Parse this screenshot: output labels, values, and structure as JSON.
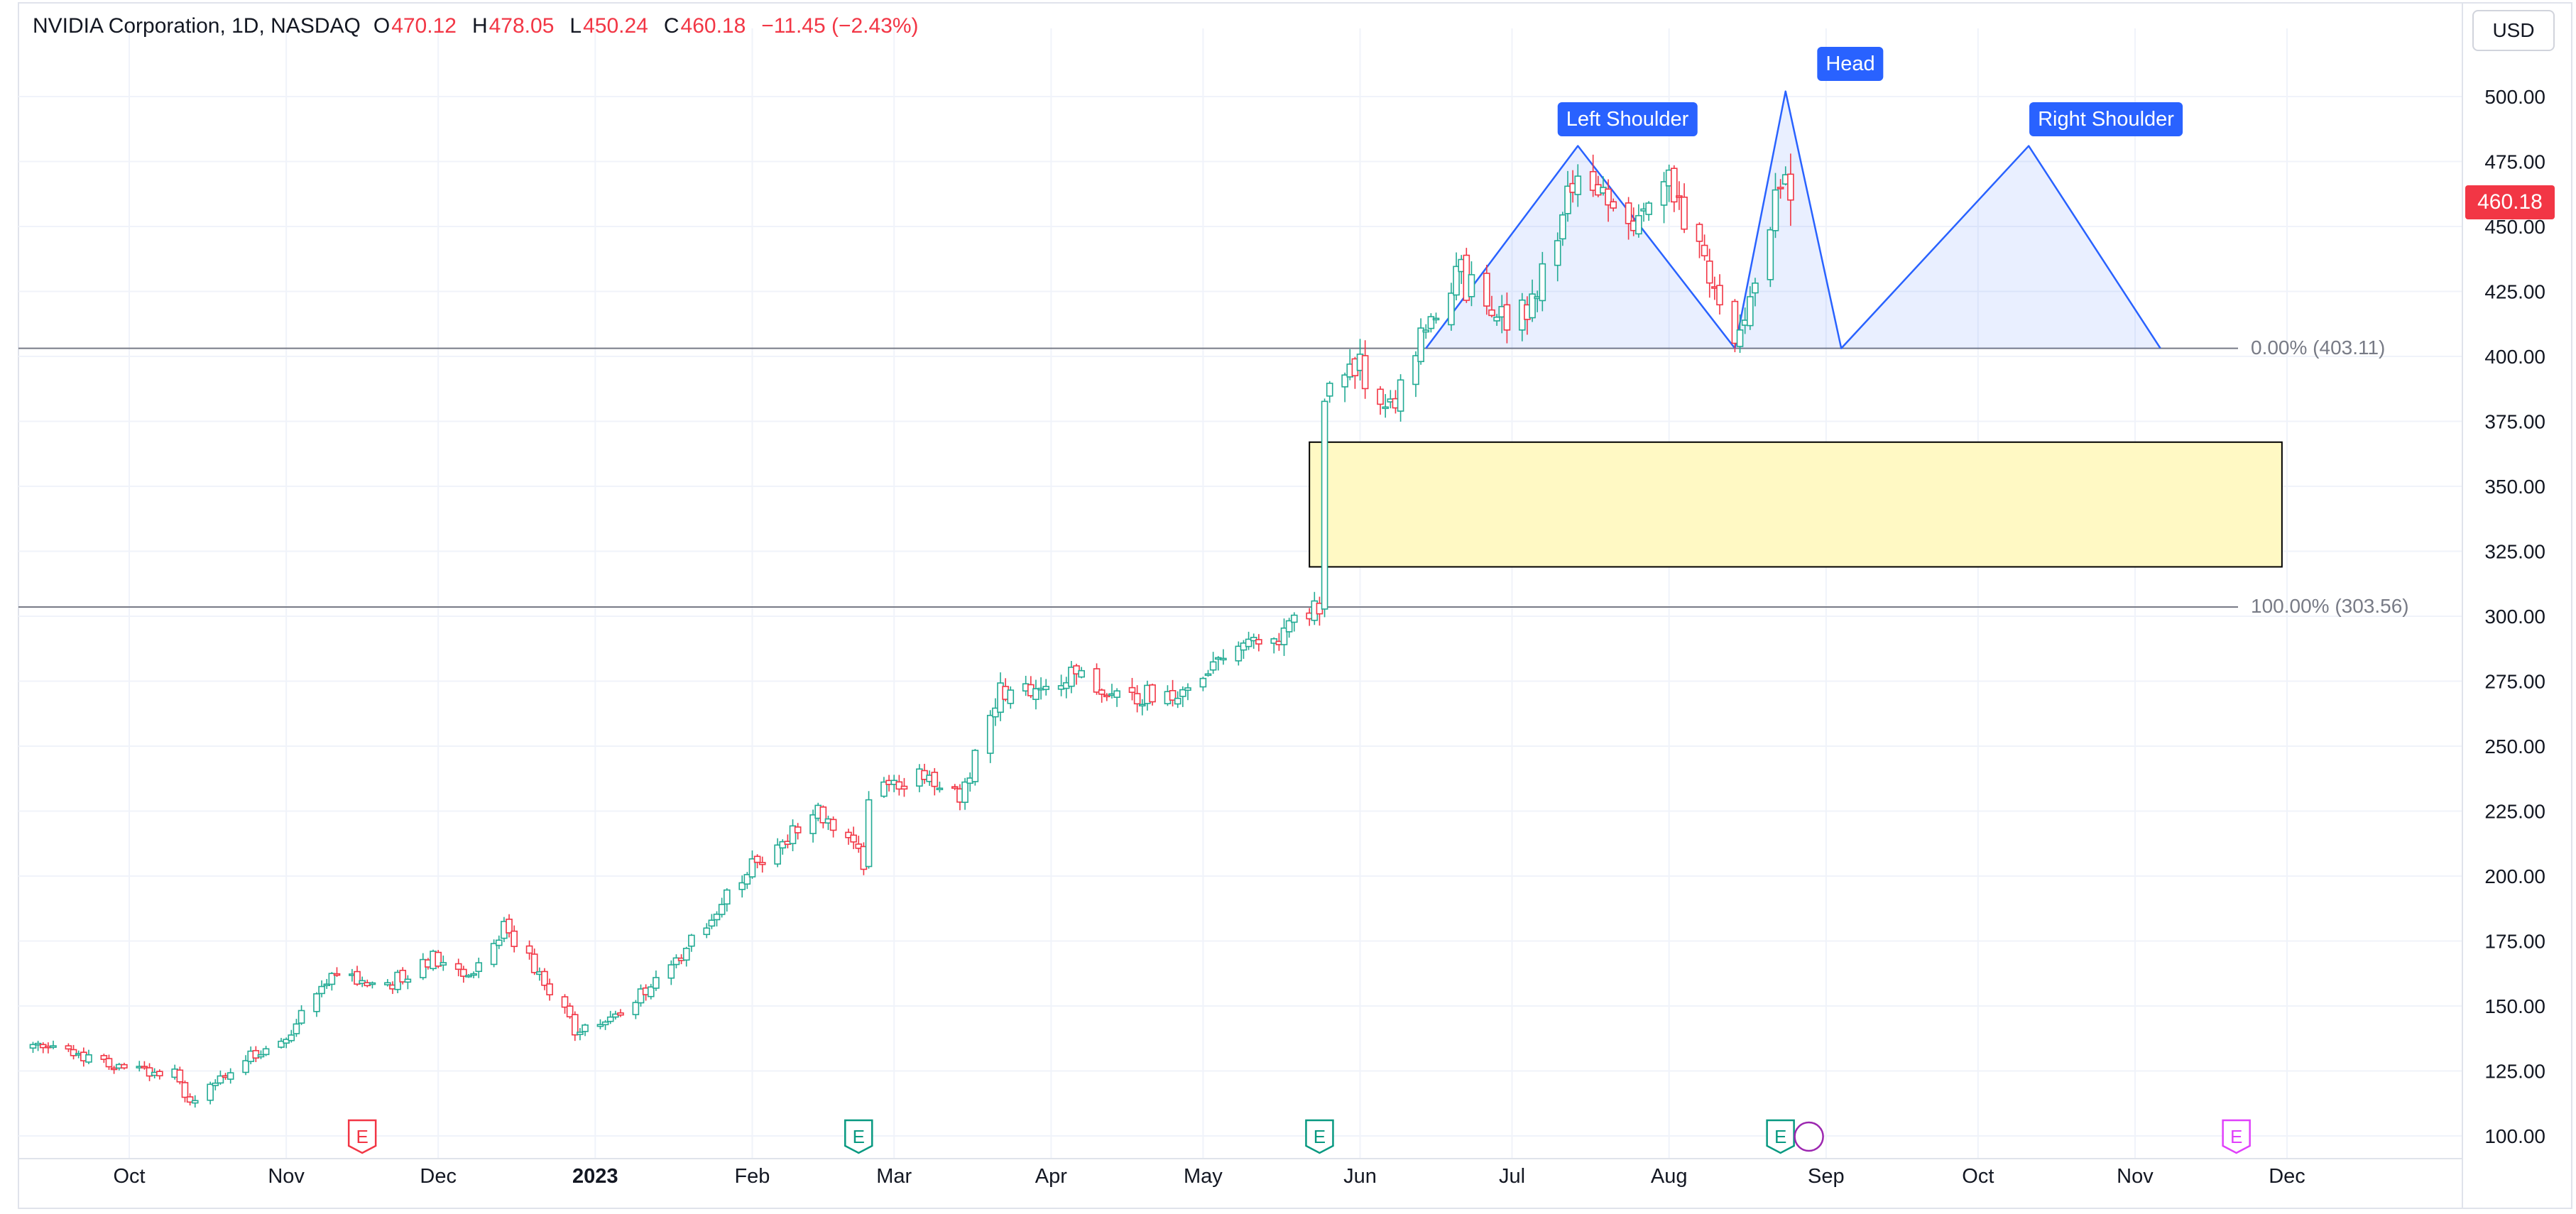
{
  "header": {
    "symbol": "NVIDIA Corporation, 1D, NASDAQ",
    "open_label": "O",
    "open": "470.12",
    "high_label": "H",
    "high": "478.05",
    "low_label": "L",
    "low": "450.24",
    "close_label": "C",
    "close": "460.18",
    "change": "−11.45 (−2.43%)"
  },
  "currency_button": "USD",
  "last_price_badge": "460.18",
  "colors": {
    "up": "#22ab94",
    "down": "#f23645",
    "pattern": "#2962ff",
    "zone_fill": "#fff9c4",
    "grid": "#f0f3fa"
  },
  "pattern_labels": {
    "left_shoulder": "Left Shoulder",
    "head": "Head",
    "right_shoulder": "Right Shoulder"
  },
  "fib_levels": [
    {
      "label": "0.00% (403.11)",
      "price": 403.11
    },
    {
      "label": "100.00% (303.56)",
      "price": 303.56
    }
  ],
  "chart_data": {
    "type": "candlestick",
    "y_ticks": [
      "100.00",
      "125.00",
      "150.00",
      "175.00",
      "200.00",
      "225.00",
      "250.00",
      "275.00",
      "300.00",
      "325.00",
      "350.00",
      "375.00",
      "400.00",
      "425.00",
      "450.00",
      "475.00",
      "500.00"
    ],
    "ylim": [
      100,
      500
    ],
    "x_ticks": [
      "Oct",
      "Nov",
      "Dec",
      "2023",
      "Feb",
      "Mar",
      "Apr",
      "May",
      "Jun",
      "Jul",
      "Aug",
      "Sep",
      "Oct",
      "Nov",
      "Dec"
    ],
    "x_tick_dates": [
      "2022-10-01",
      "2022-11-01",
      "2022-12-01",
      "2023-01-01",
      "2023-02-01",
      "2023-03-01",
      "2023-04-01",
      "2023-05-01",
      "2023-06-01",
      "2023-07-01",
      "2023-08-01",
      "2023-09-01",
      "2023-10-01",
      "2023-11-01",
      "2023-12-01"
    ],
    "price_path": [
      [
        "2022-09-12",
        136
      ],
      [
        "2022-09-22",
        131
      ],
      [
        "2022-09-30",
        125
      ],
      [
        "2022-10-10",
        125
      ],
      [
        "2022-10-13",
        112
      ],
      [
        "2022-10-25",
        131
      ],
      [
        "2022-11-01",
        138
      ],
      [
        "2022-11-10",
        162
      ],
      [
        "2022-11-21",
        158
      ],
      [
        "2022-11-30",
        169
      ],
      [
        "2022-12-07",
        162
      ],
      [
        "2022-12-14",
        180
      ],
      [
        "2022-12-20",
        165
      ],
      [
        "2022-12-28",
        141
      ],
      [
        "2023-01-05",
        145
      ],
      [
        "2023-01-19",
        172
      ],
      [
        "2023-02-01",
        205
      ],
      [
        "2023-02-14",
        225
      ],
      [
        "2023-02-23",
        206
      ],
      [
        "2023-02-24",
        233
      ],
      [
        "2023-03-07",
        238
      ],
      [
        "2023-03-14",
        229
      ],
      [
        "2023-03-22",
        270
      ],
      [
        "2023-04-03",
        278
      ],
      [
        "2023-04-13",
        271
      ],
      [
        "2023-04-25",
        268
      ],
      [
        "2023-05-02",
        281
      ],
      [
        "2023-05-15",
        290
      ],
      [
        "2023-05-24",
        305
      ],
      [
        "2023-05-25",
        379
      ],
      [
        "2023-05-30",
        400
      ],
      [
        "2023-06-07",
        378
      ],
      [
        "2023-06-13",
        410
      ],
      [
        "2023-06-20",
        433
      ],
      [
        "2023-06-28",
        412
      ],
      [
        "2023-07-06",
        424
      ],
      [
        "2023-07-14",
        470
      ],
      [
        "2023-07-24",
        451
      ],
      [
        "2023-08-01",
        465
      ],
      [
        "2023-08-14",
        405
      ],
      [
        "2023-08-24",
        471
      ],
      [
        "2023-08-25",
        460
      ]
    ],
    "events": [
      {
        "date": "2022-11-16",
        "label": "E",
        "color": "#f23645"
      },
      {
        "date": "2023-02-22",
        "label": "E",
        "color": "#089981"
      },
      {
        "date": "2023-05-24",
        "label": "E",
        "color": "#089981"
      },
      {
        "date": "2023-08-23",
        "label": "E",
        "color": "#089981"
      },
      {
        "date": "2023-11-21",
        "label": "E",
        "color": "#e040fb"
      }
    ],
    "head_and_shoulders": [
      [
        "2023-06-14",
        403.11
      ],
      [
        "2023-07-14",
        481
      ],
      [
        "2023-08-14",
        403.11
      ],
      [
        "2023-08-24",
        502
      ],
      [
        "2023-09-04",
        403.11
      ],
      [
        "2023-10-11",
        481
      ],
      [
        "2023-11-06",
        403.11
      ]
    ],
    "supply_zone": {
      "from": "2023-05-22",
      "to": "2023-11-30",
      "top": 367,
      "bottom": 319
    }
  }
}
